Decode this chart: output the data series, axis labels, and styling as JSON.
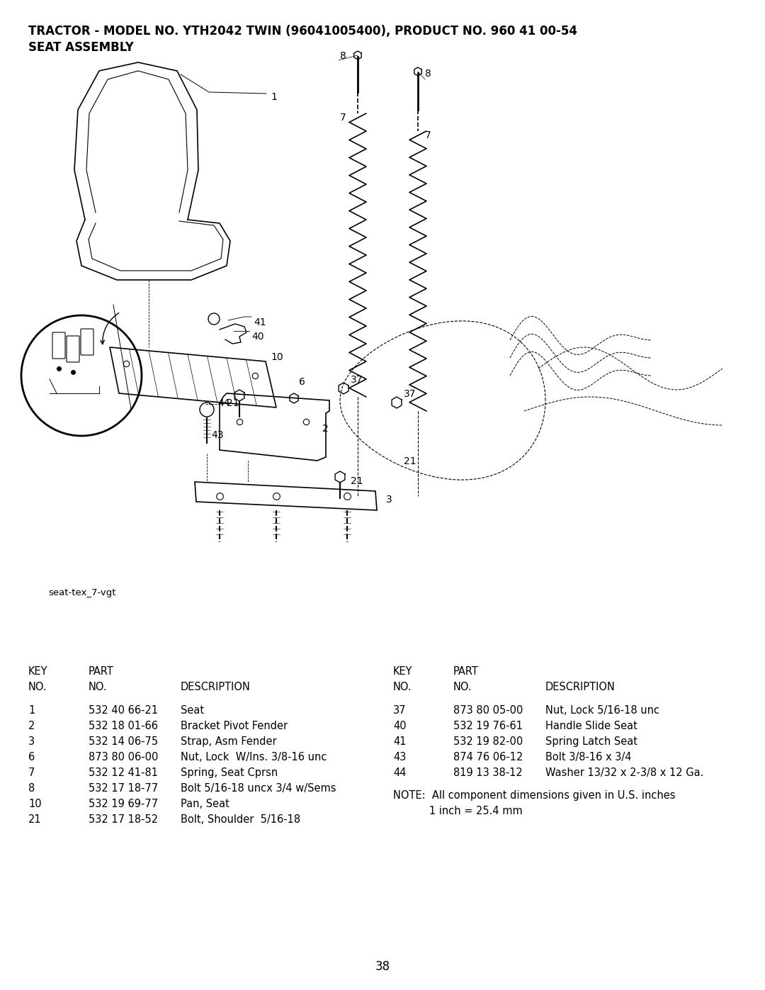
{
  "title_line1": "TRACTOR - MODEL NO. YTH2042 TWIN (96041005400), PRODUCT NO. 960 41 00-54",
  "title_line2": "SEAT ASSEMBLY",
  "diagram_label": "seat-tex_7-vgt",
  "page_number": "38",
  "bg_color": "#ffffff",
  "text_color": "#000000",
  "title_fontsize": 12,
  "table_fontsize": 10.5,
  "left_parts": [
    [
      "1",
      "532 40 66-21",
      "Seat"
    ],
    [
      "2",
      "532 18 01-66",
      "Bracket Pivot Fender"
    ],
    [
      "3",
      "532 14 06-75",
      "Strap, Asm Fender"
    ],
    [
      "6",
      "873 80 06-00",
      "Nut, Lock  W/Ins. 3/8-16 unc"
    ],
    [
      "7",
      "532 12 41-81",
      "Spring, Seat Cprsn"
    ],
    [
      "8",
      "532 17 18-77",
      "Bolt 5/16-18 uncx 3/4 w/Sems"
    ],
    [
      "10",
      "532 19 69-77",
      "Pan, Seat"
    ],
    [
      "21",
      "532 17 18-52",
      "Bolt, Shoulder  5/16-18"
    ]
  ],
  "right_parts": [
    [
      "37",
      "873 80 05-00",
      "Nut, Lock 5/16-18 unc"
    ],
    [
      "40",
      "532 19 76-61",
      "Handle Slide Seat"
    ],
    [
      "41",
      "532 19 82-00",
      "Spring Latch Seat"
    ],
    [
      "43",
      "874 76 06-12",
      "Bolt 3/8-16 x 3/4"
    ],
    [
      "44",
      "819 13 38-12",
      "Washer 13/32 x 2-3/8 x 12 Ga."
    ]
  ],
  "note_line1": "NOTE:  All component dimensions given in U.S. inches",
  "note_line2": "           1 inch = 25.4 mm"
}
